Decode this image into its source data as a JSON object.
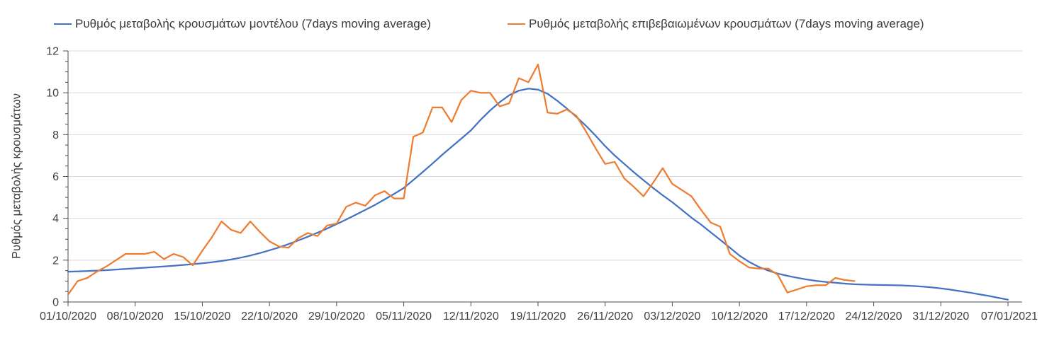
{
  "legend": [
    {
      "label": "Ρυθμός μεταβολής κρουσμάτων μοντέλου (7days moving average)",
      "color": "#4472C4"
    },
    {
      "label": "Ρυθμός μεταβολής επιβεβαιωμένων κρουσμάτων (7days moving average)",
      "color": "#ED7D31"
    }
  ],
  "y_axis": {
    "title": "Ρυθμός μεταβολής κρουσμάτων",
    "min": 0,
    "max": 12,
    "major_step": 2,
    "minor_step": 0.5,
    "tick_labels": [
      "0",
      "2",
      "4",
      "6",
      "8",
      "10",
      "12"
    ]
  },
  "x_axis": {
    "tick_labels": [
      "01/10/2020",
      "08/10/2020",
      "15/10/2020",
      "22/10/2020",
      "29/10/2020",
      "05/11/2020",
      "12/11/2020",
      "19/11/2020",
      "26/11/2020",
      "03/12/2020",
      "10/12/2020",
      "17/12/2020",
      "24/12/2020",
      "31/12/2020",
      "07/01/2021"
    ]
  },
  "style": {
    "grid_color": "#D9D9D9",
    "axis_color": "#4d4d4d",
    "text_color": "#404040",
    "background": "#ffffff"
  },
  "chart_data": {
    "type": "line",
    "title": "",
    "xlabel": "",
    "ylabel": "Ρυθμός μεταβολής κρουσμάτων",
    "ylim": [
      0,
      12
    ],
    "x_start_date": "01/10/2020",
    "x_end_date": "07/01/2021",
    "x_frequency": "daily",
    "x_tick_dates": [
      "01/10/2020",
      "08/10/2020",
      "15/10/2020",
      "22/10/2020",
      "29/10/2020",
      "05/11/2020",
      "12/11/2020",
      "19/11/2020",
      "26/11/2020",
      "03/12/2020",
      "10/12/2020",
      "17/12/2020",
      "24/12/2020",
      "31/12/2020",
      "07/01/2021"
    ],
    "grid": "horizontal",
    "legend_position": "top",
    "series": [
      {
        "name": "Ρυθμός μεταβολής κρουσμάτων μοντέλου (7days moving average)",
        "color": "#4472C4",
        "start_date": "01/10/2020",
        "end_date": "07/01/2021",
        "values": [
          1.45,
          1.46,
          1.48,
          1.5,
          1.52,
          1.55,
          1.58,
          1.61,
          1.64,
          1.67,
          1.7,
          1.73,
          1.77,
          1.81,
          1.85,
          1.9,
          1.96,
          2.03,
          2.12,
          2.22,
          2.34,
          2.47,
          2.61,
          2.77,
          2.94,
          3.12,
          3.31,
          3.51,
          3.72,
          3.94,
          4.17,
          4.4,
          4.64,
          4.9,
          5.17,
          5.45,
          5.83,
          6.22,
          6.62,
          7.03,
          7.42,
          7.81,
          8.2,
          8.7,
          9.15,
          9.55,
          9.88,
          10.1,
          10.2,
          10.15,
          9.95,
          9.62,
          9.25,
          8.85,
          8.42,
          7.95,
          7.45,
          7.0,
          6.6,
          6.2,
          5.82,
          5.45,
          5.1,
          4.77,
          4.4,
          4.03,
          3.7,
          3.33,
          2.97,
          2.6,
          2.22,
          1.92,
          1.68,
          1.5,
          1.36,
          1.25,
          1.16,
          1.08,
          1.01,
          0.96,
          0.92,
          0.88,
          0.85,
          0.83,
          0.82,
          0.81,
          0.8,
          0.79,
          0.77,
          0.74,
          0.7,
          0.65,
          0.59,
          0.52,
          0.45,
          0.37,
          0.29,
          0.2,
          0.11
        ]
      },
      {
        "name": "Ρυθμός μεταβολής επιβεβαιωμένων κρουσμάτων (7days moving average)",
        "color": "#ED7D31",
        "start_date": "01/10/2020",
        "end_date": "22/12/2020",
        "values": [
          0.35,
          1.0,
          1.15,
          1.45,
          1.7,
          2.0,
          2.3,
          2.3,
          2.3,
          2.4,
          2.05,
          2.3,
          2.15,
          1.75,
          2.45,
          3.1,
          3.85,
          3.45,
          3.3,
          3.85,
          3.35,
          2.9,
          2.65,
          2.6,
          3.05,
          3.3,
          3.15,
          3.65,
          3.75,
          4.55,
          4.75,
          4.6,
          5.1,
          5.3,
          4.95,
          4.95,
          7.9,
          8.1,
          9.3,
          9.3,
          8.6,
          9.65,
          10.1,
          10.0,
          10.0,
          9.35,
          9.5,
          10.7,
          10.5,
          11.35,
          9.05,
          9.0,
          9.2,
          8.9,
          8.15,
          7.35,
          6.6,
          6.7,
          5.9,
          5.5,
          5.05,
          5.7,
          6.4,
          5.65,
          5.35,
          5.05,
          4.4,
          3.8,
          3.6,
          2.3,
          1.95,
          1.65,
          1.6,
          1.6,
          1.3,
          0.45,
          0.6,
          0.75,
          0.8,
          0.8,
          1.15,
          1.05,
          1.0
        ]
      }
    ]
  }
}
